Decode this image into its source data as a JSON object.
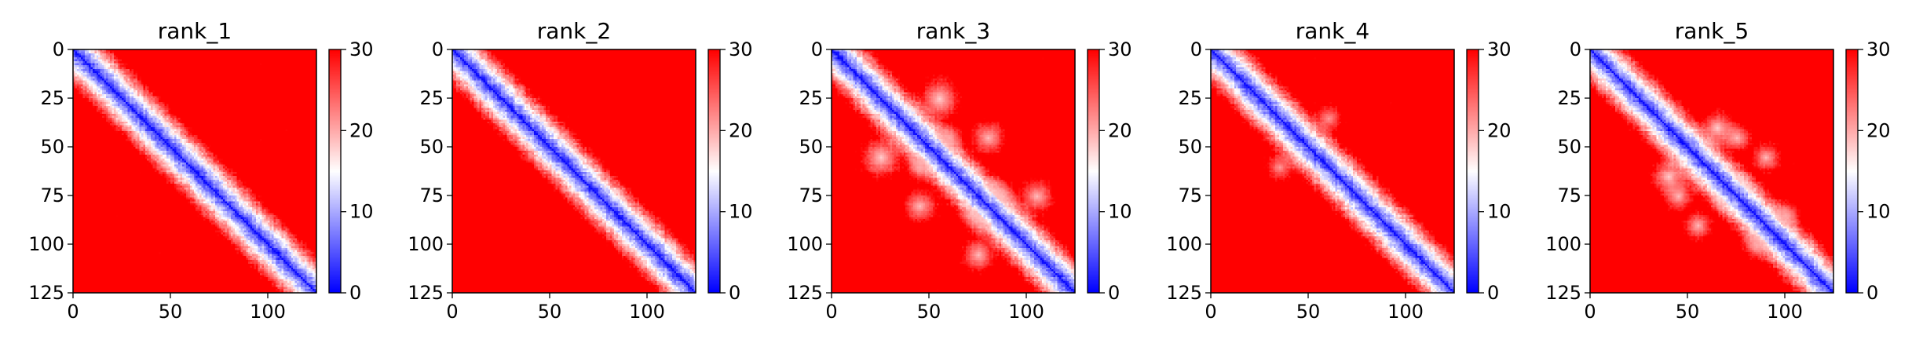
{
  "chart_data": [
    {
      "type": "heatmap",
      "title": "rank_1",
      "matrix_size": 125,
      "x_ticks": [
        0,
        50,
        100
      ],
      "y_ticks": [
        0,
        25,
        50,
        75,
        100,
        125
      ],
      "xlim": [
        0,
        125
      ],
      "ylim": [
        125,
        0
      ],
      "colorbar": {
        "range": [
          0,
          30
        ],
        "ticks": [
          0,
          10,
          20,
          30
        ],
        "colormap": [
          "#0000ff",
          "#ffffff",
          "#ff0000"
        ]
      },
      "pattern": "low values along main diagonal, high values elsewhere",
      "off_diagonal_light_patches": []
    },
    {
      "type": "heatmap",
      "title": "rank_2",
      "matrix_size": 125,
      "x_ticks": [
        0,
        50,
        100
      ],
      "y_ticks": [
        0,
        25,
        50,
        75,
        100,
        125
      ],
      "xlim": [
        0,
        125
      ],
      "ylim": [
        125,
        0
      ],
      "colorbar": {
        "range": [
          0,
          30
        ],
        "ticks": [
          0,
          10,
          20,
          30
        ],
        "colormap": [
          "#0000ff",
          "#ffffff",
          "#ff0000"
        ]
      },
      "pattern": "low values along main diagonal, high values elsewhere",
      "off_diagonal_light_patches": []
    },
    {
      "type": "heatmap",
      "title": "rank_3",
      "matrix_size": 125,
      "x_ticks": [
        0,
        50,
        100
      ],
      "y_ticks": [
        0,
        25,
        50,
        75,
        100,
        125
      ],
      "xlim": [
        0,
        125
      ],
      "ylim": [
        125,
        0
      ],
      "colorbar": {
        "range": [
          0,
          30
        ],
        "ticks": [
          0,
          10,
          20,
          30
        ],
        "colormap": [
          "#0000ff",
          "#ffffff",
          "#ff0000"
        ]
      },
      "pattern": "low values along main diagonal, high values elsewhere",
      "off_diagonal_light_patches": [
        {
          "row": 55,
          "col": 25,
          "radius": 14,
          "value": 18
        },
        {
          "row": 80,
          "col": 45,
          "radius": 12,
          "value": 19
        },
        {
          "row": 105,
          "col": 75,
          "radius": 12,
          "value": 19
        },
        {
          "row": 75,
          "col": 85,
          "radius": 12,
          "value": 19
        },
        {
          "row": 45,
          "col": 60,
          "radius": 10,
          "value": 20
        }
      ]
    },
    {
      "type": "heatmap",
      "title": "rank_4",
      "matrix_size": 125,
      "x_ticks": [
        0,
        50,
        100
      ],
      "y_ticks": [
        0,
        25,
        50,
        75,
        100,
        125
      ],
      "xlim": [
        0,
        125
      ],
      "ylim": [
        125,
        0
      ],
      "colorbar": {
        "range": [
          0,
          30
        ],
        "ticks": [
          0,
          10,
          20,
          30
        ],
        "colormap": [
          "#0000ff",
          "#ffffff",
          "#ff0000"
        ]
      },
      "pattern": "low values along main diagonal, high values elsewhere",
      "off_diagonal_light_patches": [
        {
          "row": 60,
          "col": 35,
          "radius": 10,
          "value": 21
        }
      ]
    },
    {
      "type": "heatmap",
      "title": "rank_5",
      "matrix_size": 125,
      "x_ticks": [
        0,
        50,
        100
      ],
      "y_ticks": [
        0,
        25,
        50,
        75,
        100,
        125
      ],
      "xlim": [
        0,
        125
      ],
      "ylim": [
        125,
        0
      ],
      "colorbar": {
        "range": [
          0,
          30
        ],
        "ticks": [
          0,
          10,
          20,
          30
        ],
        "colormap": [
          "#0000ff",
          "#ffffff",
          "#ff0000"
        ]
      },
      "pattern": "low values along main diagonal, high values elsewhere",
      "off_diagonal_light_patches": [
        {
          "row": 65,
          "col": 40,
          "radius": 12,
          "value": 18
        },
        {
          "row": 75,
          "col": 70,
          "radius": 10,
          "value": 18
        },
        {
          "row": 90,
          "col": 55,
          "radius": 10,
          "value": 19
        },
        {
          "row": 45,
          "col": 75,
          "radius": 10,
          "value": 19
        },
        {
          "row": 100,
          "col": 85,
          "radius": 10,
          "value": 20
        }
      ]
    }
  ]
}
